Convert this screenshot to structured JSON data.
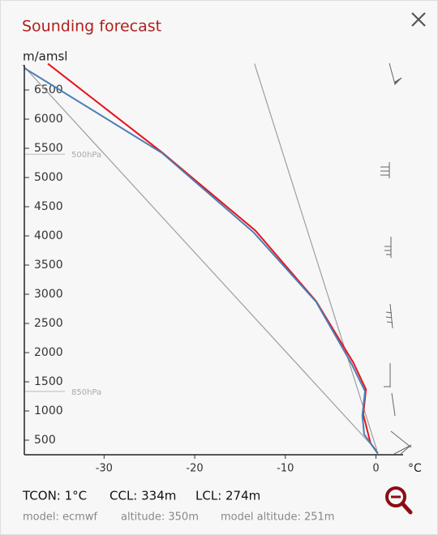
{
  "header": {
    "title": "Sounding forecast"
  },
  "chart_data": {
    "type": "line",
    "ylabel": "m/amsl",
    "xunit": "°C",
    "xlim": [
      -38.8,
      3
    ],
    "xticks": [
      -30,
      -20,
      -10,
      0
    ],
    "ylim": [
      250,
      6950
    ],
    "yticks": [
      500,
      1000,
      1500,
      2000,
      2500,
      3000,
      3500,
      4000,
      4500,
      5000,
      5500,
      6000,
      6500
    ],
    "series": [
      {
        "color": "#9e9e9e",
        "x": [
          -39,
          0
        ],
        "values": [
          6930,
          333
        ]
      },
      {
        "color": "#9e9e9e",
        "x": [
          -13.4,
          0.1
        ],
        "values": [
          6950,
          333
        ]
      },
      {
        "color": "#e8121b",
        "x": [
          -36.2,
          -23.6,
          -13.3,
          -6.6,
          -2.5,
          -1.1,
          -1.4,
          -0.6,
          0.2
        ],
        "values": [
          6950,
          5430,
          4090,
          2880,
          1830,
          1370,
          940,
          450,
          280
        ]
      },
      {
        "color": "#4a7fb5",
        "x": [
          -38.8,
          -23.6,
          -13.5,
          -6.6,
          -2.7,
          -1.2,
          -1.5,
          -1.3,
          0.2
        ],
        "values": [
          6875,
          5420,
          4060,
          2870,
          1810,
          1340,
          920,
          600,
          270
        ]
      }
    ],
    "annotations": [
      {
        "label": "500hPa",
        "value": 5400
      },
      {
        "label": "850hPa",
        "value": 1335
      }
    ]
  },
  "footer": {
    "stats": [
      "TCON: 1°C",
      "CCL: 334m",
      "LCL: 274m"
    ],
    "info": [
      "model: ecmwf",
      "altitude: 350m",
      "model altitude: 251m"
    ]
  }
}
